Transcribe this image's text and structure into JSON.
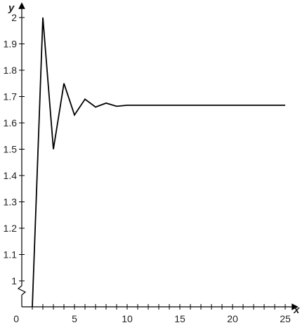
{
  "chart_data": {
    "type": "line",
    "xlabel": "x",
    "ylabel": "y",
    "xlim": [
      0,
      26
    ],
    "ylim": [
      1,
      2.05
    ],
    "y_axis_break": true,
    "x_ticks": [
      0,
      1,
      2,
      3,
      4,
      5,
      6,
      7,
      8,
      9,
      10,
      11,
      12,
      13,
      14,
      15,
      16,
      17,
      18,
      19,
      20,
      21,
      22,
      23,
      24,
      25
    ],
    "x_tick_labels": [
      {
        "value": 0,
        "label": "0"
      },
      {
        "value": 5,
        "label": "5"
      },
      {
        "value": 10,
        "label": "10"
      },
      {
        "value": 15,
        "label": "15"
      },
      {
        "value": 20,
        "label": "20"
      },
      {
        "value": 25,
        "label": "25"
      }
    ],
    "y_tick_labels": [
      {
        "value": 1,
        "label": "1"
      },
      {
        "value": 1.1,
        "label": "1.1"
      },
      {
        "value": 1.2,
        "label": "1.2"
      },
      {
        "value": 1.3,
        "label": "1.3"
      },
      {
        "value": 1.4,
        "label": "1.4"
      },
      {
        "value": 1.5,
        "label": "1.5"
      },
      {
        "value": 1.6,
        "label": "1.6"
      },
      {
        "value": 1.7,
        "label": "1.7"
      },
      {
        "value": 1.8,
        "label": "1.8"
      },
      {
        "value": 1.9,
        "label": "1.9"
      },
      {
        "value": 2,
        "label": "2"
      }
    ],
    "series": [
      {
        "color": "#000000",
        "x": [
          1,
          2,
          3,
          4,
          5,
          6,
          7,
          8,
          9,
          10,
          25
        ],
        "y": [
          1,
          2,
          1.5,
          1.75,
          1.63,
          1.69,
          1.66,
          1.675,
          1.663,
          1.667,
          1.667
        ]
      }
    ],
    "grid": false
  }
}
